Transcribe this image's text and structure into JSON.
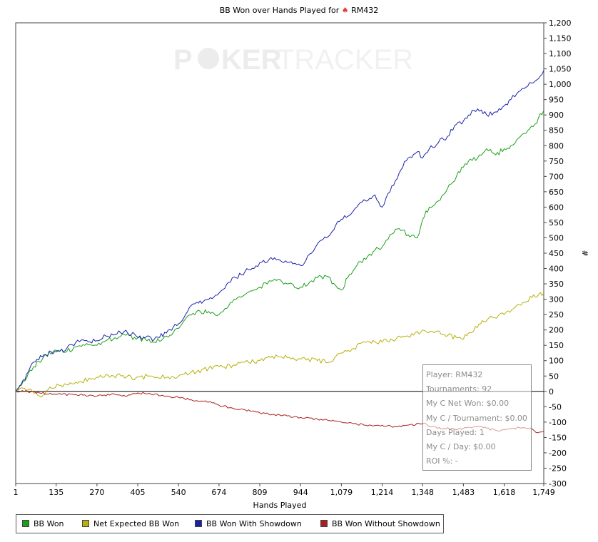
{
  "header": {
    "title_prefix": "BB Won over Hands Played for",
    "title_player": "RM432"
  },
  "watermark": {
    "text_left": "P",
    "text_right": "KER",
    "text_brand": "TRACKER"
  },
  "stats": {
    "player": "Player: RM432",
    "tournaments": "Tournaments: 92",
    "net_won": "My C Net Won: $0.00",
    "per_tournament": "My C / Tournament: $0.00",
    "days_played": "Days Played: 1",
    "per_day": "My C / Day: $0.00",
    "roi": "ROI %: -"
  },
  "chart_data": {
    "type": "line",
    "title": "BB Won over Hands Played for RM432",
    "xlabel": "Hands Played",
    "ylabel": "#",
    "xlim": [
      1,
      1749
    ],
    "ylim": [
      -300,
      1200
    ],
    "xticks": [
      1,
      135,
      270,
      405,
      540,
      674,
      809,
      944,
      1079,
      1214,
      1348,
      1483,
      1618,
      1749
    ],
    "xtick_labels": [
      "1",
      "135",
      "270",
      "405",
      "540",
      "674",
      "809",
      "944",
      "1,079",
      "1,214",
      "1,348",
      "1,483",
      "1,618",
      "1,749"
    ],
    "yticks": [
      -300,
      -250,
      -200,
      -150,
      -100,
      -50,
      0,
      50,
      100,
      150,
      200,
      250,
      300,
      350,
      400,
      450,
      500,
      550,
      600,
      650,
      700,
      750,
      800,
      850,
      900,
      950,
      1000,
      1050,
      1100,
      1150,
      1200
    ],
    "ytick_labels": [
      "-300",
      "-250",
      "-200",
      "-150",
      "-100",
      "-50",
      "0",
      "50",
      "100",
      "150",
      "200",
      "250",
      "300",
      "350",
      "400",
      "450",
      "500",
      "550",
      "600",
      "650",
      "700",
      "750",
      "800",
      "850",
      "900",
      "950",
      "1,000",
      "1,050",
      "1,100",
      "1,150",
      "1,200"
    ],
    "legend_position": "bottom",
    "grid": false,
    "series": [
      {
        "name": "BB Won",
        "color": "#1aa01a",
        "x": [
          1,
          20,
          60,
          100,
          130,
          170,
          200,
          230,
          270,
          300,
          330,
          360,
          400,
          430,
          460,
          500,
          540,
          570,
          600,
          640,
          674,
          700,
          730,
          760,
          790,
          809,
          840,
          870,
          900,
          944,
          980,
          1000,
          1030,
          1060,
          1079,
          1100,
          1130,
          1160,
          1190,
          1214,
          1240,
          1270,
          1300,
          1330,
          1348,
          1370,
          1400,
          1430,
          1460,
          1483,
          1500,
          1530,
          1560,
          1590,
          1618,
          1640,
          1660,
          1690,
          1720,
          1749
        ],
        "y": [
          0,
          20,
          80,
          120,
          135,
          130,
          145,
          150,
          150,
          165,
          175,
          185,
          170,
          170,
          160,
          180,
          205,
          245,
          260,
          260,
          250,
          270,
          300,
          315,
          330,
          340,
          360,
          365,
          350,
          340,
          360,
          370,
          375,
          345,
          330,
          370,
          410,
          430,
          460,
          470,
          510,
          530,
          510,
          500,
          560,
          600,
          620,
          660,
          700,
          730,
          750,
          760,
          790,
          770,
          790,
          800,
          820,
          840,
          870,
          915
        ]
      },
      {
        "name": "Net Expected BB Won",
        "color": "#b8b00c",
        "x": [
          1,
          30,
          80,
          120,
          150,
          200,
          250,
          300,
          350,
          400,
          450,
          500,
          540,
          600,
          640,
          674,
          720,
          760,
          809,
          850,
          900,
          944,
          1000,
          1040,
          1079,
          1120,
          1160,
          1214,
          1260,
          1300,
          1348,
          1380,
          1420,
          1460,
          1483,
          1500,
          1540,
          1580,
          1618,
          1650,
          1680,
          1710,
          1749
        ],
        "y": [
          0,
          10,
          -15,
          10,
          20,
          30,
          40,
          55,
          50,
          45,
          50,
          45,
          50,
          65,
          75,
          80,
          85,
          95,
          100,
          115,
          110,
          105,
          100,
          95,
          125,
          140,
          160,
          160,
          170,
          180,
          200,
          195,
          185,
          175,
          170,
          190,
          220,
          240,
          250,
          270,
          290,
          305,
          320
        ]
      },
      {
        "name": "BB Won With Showdown",
        "color": "#1a22a8",
        "x": [
          1,
          20,
          60,
          100,
          130,
          170,
          200,
          230,
          270,
          300,
          330,
          360,
          400,
          430,
          460,
          500,
          540,
          570,
          600,
          640,
          674,
          700,
          730,
          760,
          790,
          809,
          840,
          870,
          900,
          944,
          980,
          1000,
          1030,
          1060,
          1079,
          1100,
          1130,
          1160,
          1190,
          1214,
          1240,
          1270,
          1300,
          1330,
          1348,
          1370,
          1400,
          1430,
          1460,
          1483,
          1500,
          1530,
          1560,
          1590,
          1618,
          1640,
          1660,
          1690,
          1720,
          1749
        ],
        "y": [
          0,
          25,
          95,
          120,
          130,
          140,
          160,
          165,
          165,
          180,
          185,
          195,
          180,
          175,
          170,
          190,
          220,
          260,
          290,
          300,
          320,
          350,
          370,
          390,
          400,
          420,
          430,
          430,
          420,
          410,
          450,
          480,
          500,
          540,
          560,
          570,
          600,
          620,
          640,
          600,
          650,
          710,
          760,
          780,
          760,
          790,
          810,
          830,
          870,
          880,
          900,
          920,
          900,
          910,
          930,
          950,
          970,
          990,
          1010,
          1045
        ]
      },
      {
        "name": "BB Won Without Showdown",
        "color": "#aa2020",
        "x": [
          1,
          40,
          80,
          135,
          200,
          270,
          330,
          370,
          405,
          450,
          500,
          540,
          600,
          640,
          674,
          720,
          760,
          809,
          850,
          900,
          944,
          1000,
          1040,
          1079,
          1120,
          1160,
          1214,
          1260,
          1300,
          1348,
          1380,
          1420,
          1460,
          1483,
          1520,
          1560,
          1600,
          1618,
          1650,
          1680,
          1710,
          1730,
          1749
        ],
        "y": [
          0,
          0,
          -5,
          -10,
          -10,
          -15,
          -10,
          -15,
          -5,
          -10,
          -15,
          -20,
          -30,
          -35,
          -45,
          -55,
          -60,
          -70,
          -75,
          -80,
          -85,
          -90,
          -95,
          -100,
          -105,
          -110,
          -110,
          -115,
          -110,
          -105,
          -115,
          -120,
          -125,
          -120,
          -115,
          -120,
          -130,
          -125,
          -120,
          -118,
          -122,
          -135,
          -130
        ]
      }
    ]
  }
}
